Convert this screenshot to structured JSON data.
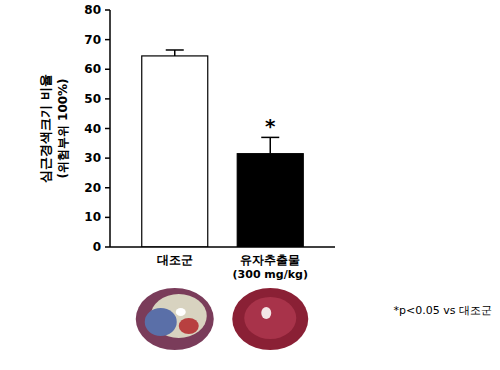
{
  "chart_data": {
    "type": "bar",
    "y_label": "심근경색크기 비율 (위험부위 100%)",
    "categories": [
      "대조군",
      "유자추출물 (300 mg/kg)"
    ],
    "values": [
      64.5,
      31.5
    ],
    "errors": [
      2,
      5.5
    ],
    "colors": [
      "#ffffff",
      "#000000"
    ],
    "ylim": [
      0,
      80
    ],
    "yticks": [
      0,
      10,
      20,
      30,
      40,
      50,
      60,
      70,
      80
    ],
    "grid": false,
    "annotations": [
      {
        "text": "*",
        "category": "유자추출물 (300 mg/kg)"
      },
      {
        "text": "*p<0.05 vs 대조군"
      }
    ]
  }
}
